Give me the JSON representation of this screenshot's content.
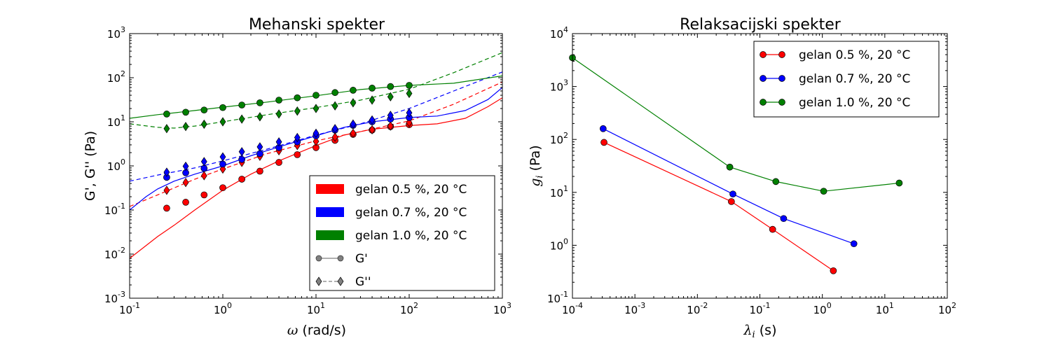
{
  "chart_data": [
    {
      "type": "line",
      "title": "Mehanski spekter",
      "xlabel": "ω (rad/s)",
      "ylabel": "G', G'' (Pa)",
      "xscale": "log",
      "yscale": "log",
      "xlim": [
        0.1,
        1000
      ],
      "ylim": [
        0.001,
        1000
      ],
      "x_ticks": [
        0.1,
        1,
        10,
        100,
        1000
      ],
      "y_ticks": [
        0.001,
        0.01,
        0.1,
        1,
        10,
        100,
        1000
      ],
      "legend_position": "lower-right",
      "legend": [
        {
          "label": "gelan 0.5 %, 20 °C",
          "color": "#ff0000",
          "kind": "patch"
        },
        {
          "label": "gelan 0.7 %, 20 °C",
          "color": "#0000ff",
          "kind": "patch"
        },
        {
          "label": "gelan 1.0 %, 20 °C",
          "color": "#008000",
          "kind": "patch"
        },
        {
          "label": "G'",
          "color": "#808080",
          "kind": "circle-solid"
        },
        {
          "label": "G''",
          "color": "#808080",
          "kind": "diamond-dashed"
        }
      ],
      "x_points": [
        0.25,
        0.4,
        0.63,
        1.0,
        1.6,
        2.5,
        4.0,
        6.3,
        10,
        16,
        25,
        40,
        63,
        100
      ],
      "series": [
        {
          "name": "gelan 0.5 %, 20 °C",
          "quantity": "G'",
          "marker": "circle",
          "color": "#ff0000",
          "points": [
            0.11,
            0.15,
            0.22,
            0.32,
            0.5,
            0.76,
            1.2,
            1.8,
            2.6,
            3.8,
            5.2,
            6.5,
            7.8,
            8.6
          ]
        },
        {
          "name": "gelan 0.5 %, 20 °C",
          "quantity": "G''",
          "marker": "diamond",
          "color": "#ff0000",
          "points": [
            0.28,
            0.42,
            0.6,
            0.85,
            1.2,
            1.65,
            2.2,
            2.9,
            3.6,
            4.5,
            5.5,
            6.6,
            8.0,
            9.6
          ]
        },
        {
          "name": "gelan 0.7 %, 20 °C",
          "quantity": "G'",
          "marker": "circle",
          "color": "#0000ff",
          "points": [
            0.55,
            0.7,
            0.88,
            1.1,
            1.4,
            1.9,
            2.6,
            3.5,
            4.8,
            6.5,
            8.3,
            10,
            11.5,
            12.5
          ]
        },
        {
          "name": "gelan 0.7 %, 20 °C",
          "quantity": "G''",
          "marker": "diamond",
          "color": "#0000ff",
          "points": [
            0.72,
            0.98,
            1.25,
            1.6,
            2.1,
            2.7,
            3.5,
            4.4,
            5.5,
            7.0,
            8.9,
            11,
            14,
            16
          ]
        },
        {
          "name": "gelan 1.0 %, 20 °C",
          "quantity": "G'",
          "marker": "circle",
          "color": "#008000",
          "points": [
            15,
            16.5,
            18.5,
            21,
            24,
            27,
            31,
            35,
            40,
            46,
            52,
            58,
            63,
            67
          ]
        },
        {
          "name": "gelan 1.0 %, 20 °C",
          "quantity": "G''",
          "marker": "diamond",
          "color": "#008000",
          "points": [
            7,
            7.8,
            8.8,
            10,
            11.5,
            13,
            15,
            17.5,
            20,
            23,
            27,
            31,
            37,
            44
          ]
        }
      ],
      "fit_lines": [
        {
          "name": "gelan 0.5 %, 20 °C",
          "quantity": "G'",
          "style": "solid",
          "color": "#ff0000",
          "points": [
            [
              0.1,
              0.008
            ],
            [
              0.2,
              0.025
            ],
            [
              0.3,
              0.045
            ],
            [
              0.5,
              0.1
            ],
            [
              1,
              0.28
            ],
            [
              2,
              0.65
            ],
            [
              4,
              1.3
            ],
            [
              10,
              2.9
            ],
            [
              20,
              5
            ],
            [
              40,
              6.8
            ],
            [
              100,
              8.2
            ],
            [
              200,
              9
            ],
            [
              400,
              12
            ],
            [
              700,
              22
            ],
            [
              1000,
              35
            ]
          ]
        },
        {
          "name": "gelan 0.5 %, 20 °C",
          "quantity": "G''",
          "style": "dashed",
          "color": "#ff0000",
          "points": [
            [
              0.1,
              0.12
            ],
            [
              0.2,
              0.22
            ],
            [
              0.5,
              0.5
            ],
            [
              1,
              0.85
            ],
            [
              3,
              1.9
            ],
            [
              10,
              3.7
            ],
            [
              30,
              6.0
            ],
            [
              100,
              10.5
            ],
            [
              300,
              25
            ],
            [
              1000,
              80
            ]
          ]
        },
        {
          "name": "gelan 0.7 %, 20 °C",
          "quantity": "G'",
          "style": "solid",
          "color": "#0000ff",
          "points": [
            [
              0.1,
              0.1
            ],
            [
              0.15,
              0.2
            ],
            [
              0.2,
              0.3
            ],
            [
              0.3,
              0.45
            ],
            [
              0.5,
              0.65
            ],
            [
              1,
              1.0
            ],
            [
              2,
              1.7
            ],
            [
              4,
              2.7
            ],
            [
              10,
              4.8
            ],
            [
              20,
              7.5
            ],
            [
              40,
              10
            ],
            [
              100,
              12.5
            ],
            [
              200,
              13.5
            ],
            [
              400,
              18
            ],
            [
              700,
              32
            ],
            [
              1000,
              60
            ]
          ]
        },
        {
          "name": "gelan 0.7 %, 20 °C",
          "quantity": "G''",
          "style": "dashed",
          "color": "#0000ff",
          "points": [
            [
              0.1,
              0.45
            ],
            [
              0.2,
              0.62
            ],
            [
              0.5,
              0.9
            ],
            [
              1,
              1.3
            ],
            [
              3,
              2.4
            ],
            [
              10,
              5.0
            ],
            [
              30,
              9.0
            ],
            [
              100,
              20
            ],
            [
              300,
              50
            ],
            [
              1000,
              135
            ]
          ]
        },
        {
          "name": "gelan 1.0 %, 20 °C",
          "quantity": "G'",
          "style": "solid",
          "color": "#008000",
          "points": [
            [
              0.1,
              12
            ],
            [
              0.2,
              14.5
            ],
            [
              0.5,
              18
            ],
            [
              1,
              21.5
            ],
            [
              3,
              28
            ],
            [
              10,
              39
            ],
            [
              30,
              54
            ],
            [
              100,
              67
            ],
            [
              300,
              75
            ],
            [
              1000,
              110
            ]
          ]
        },
        {
          "name": "gelan 1.0 %, 20 °C",
          "quantity": "G''",
          "style": "dashed",
          "color": "#008000",
          "points": [
            [
              0.1,
              9
            ],
            [
              0.2,
              7.5
            ],
            [
              0.3,
              7.2
            ],
            [
              0.5,
              8
            ],
            [
              1,
              10
            ],
            [
              3,
              14.5
            ],
            [
              10,
              21
            ],
            [
              30,
              31
            ],
            [
              100,
              55
            ],
            [
              300,
              130
            ],
            [
              1000,
              370
            ]
          ]
        }
      ]
    },
    {
      "type": "line",
      "title": "Relaksacijski spekter",
      "xlabel": "λi (s)",
      "ylabel": "gi (Pa)",
      "xscale": "log",
      "yscale": "log",
      "xlim": [
        0.0001,
        100
      ],
      "ylim": [
        0.1,
        10000
      ],
      "x_ticks": [
        0.0001,
        0.001,
        0.01,
        0.1,
        1,
        10,
        100
      ],
      "y_ticks": [
        0.1,
        1,
        10,
        100,
        1000,
        10000
      ],
      "legend_position": "top-right",
      "series": [
        {
          "name": "gelan 0.5 %, 20 °C",
          "color": "#ff0000",
          "marker": "circle",
          "x": [
            0.00032,
            0.035,
            0.16,
            1.5
          ],
          "y": [
            88,
            6.7,
            2.0,
            0.33
          ]
        },
        {
          "name": "gelan 0.7 %, 20 °C",
          "color": "#0000ff",
          "marker": "circle",
          "x": [
            0.00031,
            0.037,
            0.24,
            3.2
          ],
          "y": [
            160,
            9.3,
            3.2,
            1.07
          ]
        },
        {
          "name": "gelan 1.0 %, 20 °C",
          "color": "#008000",
          "marker": "circle",
          "x": [
            0.0001,
            0.033,
            0.18,
            1.05,
            17
          ],
          "y": [
            3500,
            30,
            16,
            10.5,
            15
          ]
        }
      ]
    }
  ]
}
